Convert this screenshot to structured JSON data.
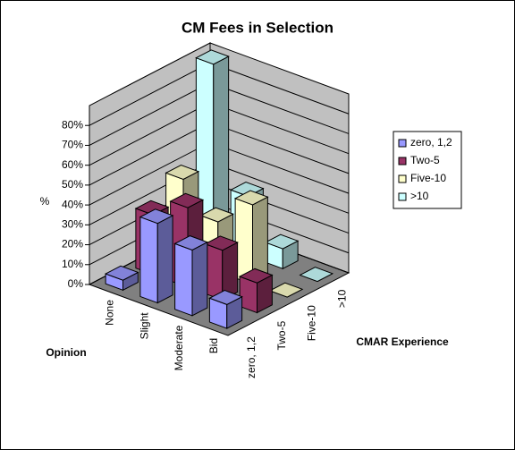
{
  "chart_data": {
    "type": "bar3d",
    "title": "CM Fees in Selection",
    "categories": [
      "None",
      "Slight",
      "Moderate",
      "Bid"
    ],
    "series": [
      {
        "name": "zero, 1,2",
        "color": "#9999ff",
        "values": [
          5,
          40,
          33,
          12
        ]
      },
      {
        "name": "Two-5",
        "color": "#993366",
        "values": [
          30,
          40,
          25,
          15
        ]
      },
      {
        "name": "Five-10",
        "color": "#ffffcc",
        "values": [
          40,
          25,
          40,
          0
        ]
      },
      {
        "name": ">10",
        "color": "#ccffff",
        "values": [
          90,
          30,
          10,
          0
        ]
      }
    ],
    "x_label": "Opinion",
    "y_label": "%",
    "z_label": "CMAR Experience",
    "ylim": [
      0,
      90
    ],
    "yticks": [
      {
        "value": 0,
        "label": "0%"
      },
      {
        "value": 10,
        "label": "10%"
      },
      {
        "value": 20,
        "label": "20%"
      },
      {
        "value": 30,
        "label": "30%"
      },
      {
        "value": 40,
        "label": "40%"
      },
      {
        "value": 50,
        "label": "50%"
      },
      {
        "value": 60,
        "label": "60%"
      },
      {
        "value": 70,
        "label": "70%"
      },
      {
        "value": 80,
        "label": "80%"
      }
    ],
    "grid": true,
    "legend": "right"
  }
}
